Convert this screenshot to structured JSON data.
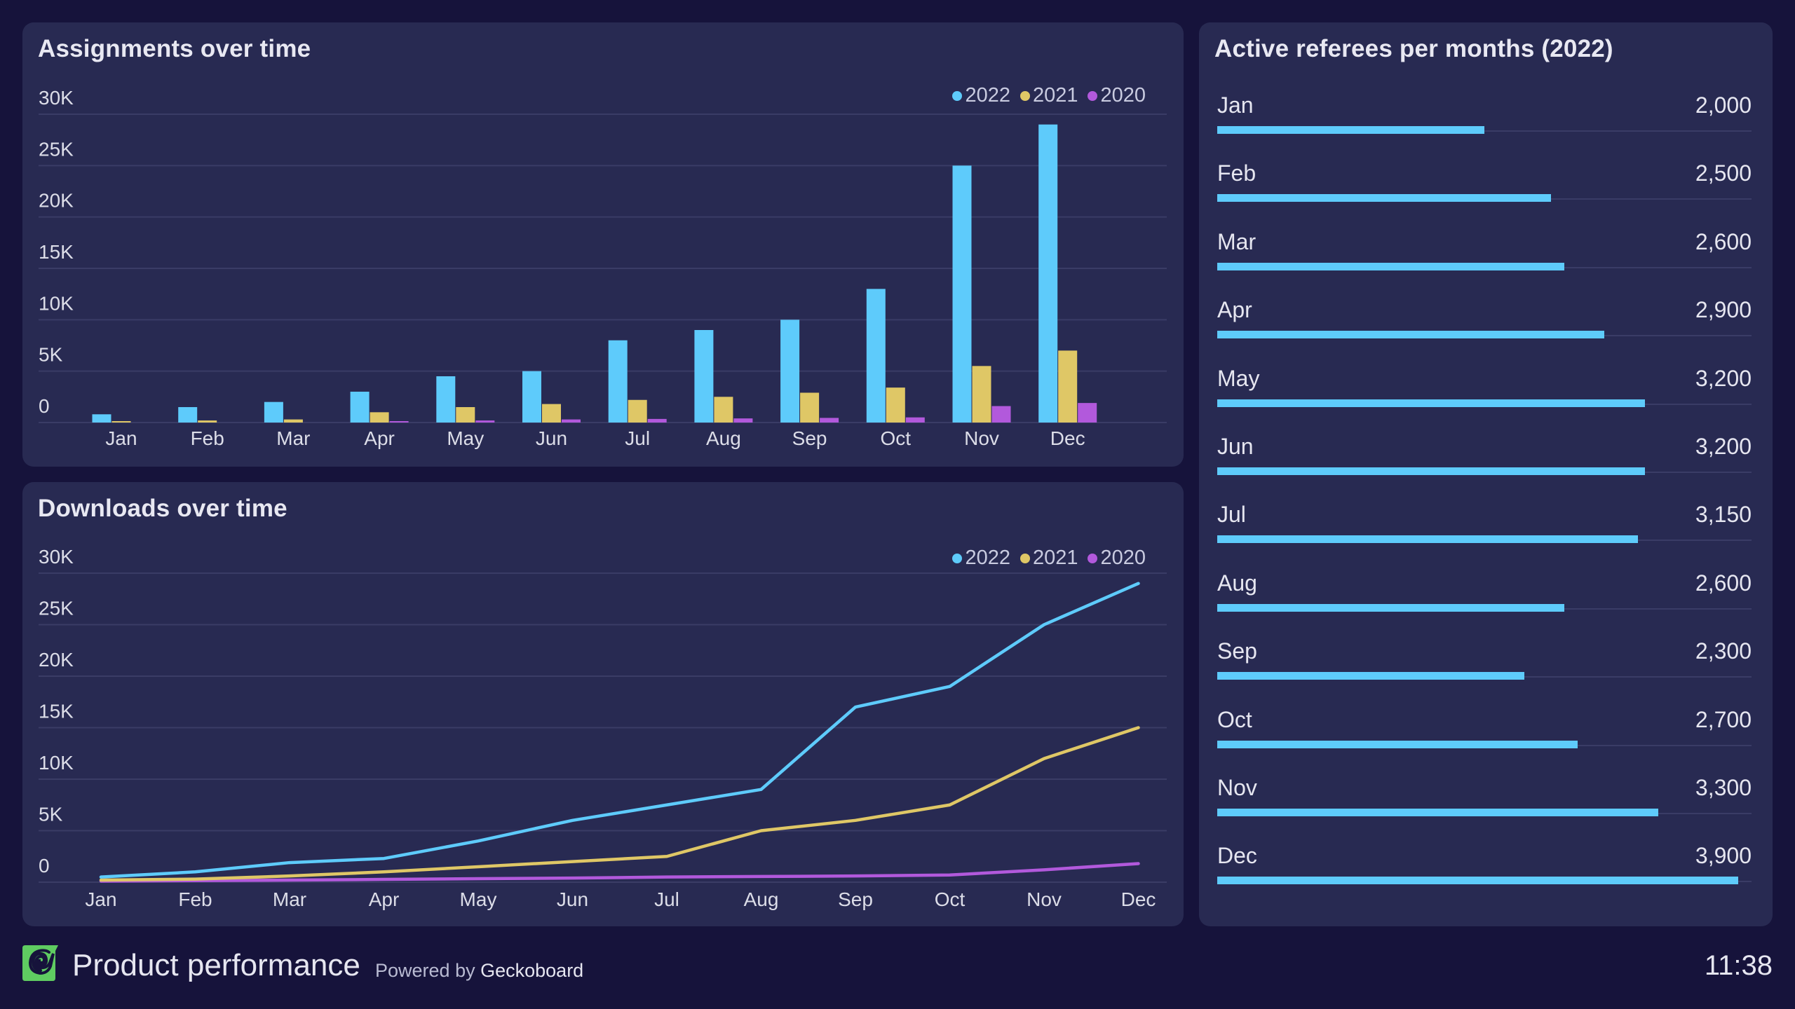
{
  "colors": {
    "2022": "#5ecbfb",
    "2021": "#dfc766",
    "2020": "#b259dc",
    "ref_bar": "#5ecbfb",
    "logo": "#5fcc61"
  },
  "chart_data": [
    {
      "id": "assignments",
      "type": "bar",
      "title": "Assignments over time",
      "xlabel": "",
      "ylabel": "",
      "categories": [
        "Jan",
        "Feb",
        "Mar",
        "Apr",
        "May",
        "Jun",
        "Jul",
        "Aug",
        "Sep",
        "Oct",
        "Nov",
        "Dec"
      ],
      "ylim": [
        0,
        30000
      ],
      "yticks": [
        0,
        5000,
        10000,
        15000,
        20000,
        25000,
        30000
      ],
      "ytick_labels": [
        "0",
        "5K",
        "10K",
        "15K",
        "20K",
        "25K",
        "30K"
      ],
      "grid": true,
      "legend_position": "top-right",
      "legend": [
        "2022",
        "2021",
        "2020"
      ],
      "series": [
        {
          "name": "2022",
          "values": [
            800,
            1500,
            2000,
            3000,
            4500,
            5000,
            8000,
            9000,
            10000,
            13000,
            25000,
            29000
          ]
        },
        {
          "name": "2021",
          "values": [
            100,
            200,
            300,
            1000,
            1500,
            1800,
            2200,
            2500,
            2900,
            3400,
            5500,
            7000
          ]
        },
        {
          "name": "2020",
          "values": [
            0,
            0,
            0,
            100,
            200,
            300,
            350,
            400,
            450,
            500,
            1600,
            1900
          ]
        }
      ]
    },
    {
      "id": "downloads",
      "type": "line",
      "title": "Downloads over time",
      "xlabel": "",
      "ylabel": "",
      "categories": [
        "Jan",
        "Feb",
        "Mar",
        "Apr",
        "May",
        "Jun",
        "Jul",
        "Aug",
        "Sep",
        "Oct",
        "Nov",
        "Dec"
      ],
      "ylim": [
        0,
        30000
      ],
      "yticks": [
        0,
        5000,
        10000,
        15000,
        20000,
        25000,
        30000
      ],
      "ytick_labels": [
        "0",
        "5K",
        "10K",
        "15K",
        "20K",
        "25K",
        "30K"
      ],
      "grid": true,
      "legend_position": "top-right",
      "legend": [
        "2022",
        "2021",
        "2020"
      ],
      "series": [
        {
          "name": "2022",
          "values": [
            500,
            1000,
            1900,
            2300,
            4000,
            6000,
            7500,
            9000,
            17000,
            19000,
            25000,
            29000
          ]
        },
        {
          "name": "2021",
          "values": [
            200,
            300,
            600,
            1000,
            1500,
            2000,
            2500,
            5000,
            6000,
            7500,
            12000,
            15000
          ]
        },
        {
          "name": "2020",
          "values": [
            100,
            150,
            200,
            270,
            340,
            400,
            500,
            550,
            600,
            700,
            1200,
            1800
          ]
        }
      ]
    },
    {
      "id": "referees",
      "type": "bar",
      "orientation": "horizontal",
      "title": "Active referees per months (2022)",
      "categories": [
        "Jan",
        "Feb",
        "Mar",
        "Apr",
        "May",
        "Jun",
        "Jul",
        "Aug",
        "Sep",
        "Oct",
        "Nov",
        "Dec"
      ],
      "values": [
        2000,
        2500,
        2600,
        2900,
        3200,
        3200,
        3150,
        2600,
        2300,
        2700,
        3300,
        3900
      ],
      "value_labels": [
        "2,000",
        "2,500",
        "2,600",
        "2,900",
        "3,200",
        "3,200",
        "3,150",
        "2,600",
        "2,300",
        "2,700",
        "3,300",
        "3,900"
      ],
      "xlim": [
        0,
        4000
      ]
    }
  ],
  "footer": {
    "title": "Product performance",
    "powered_prefix": "Powered by",
    "powered_brand": "Geckoboard",
    "time": "11:38"
  }
}
